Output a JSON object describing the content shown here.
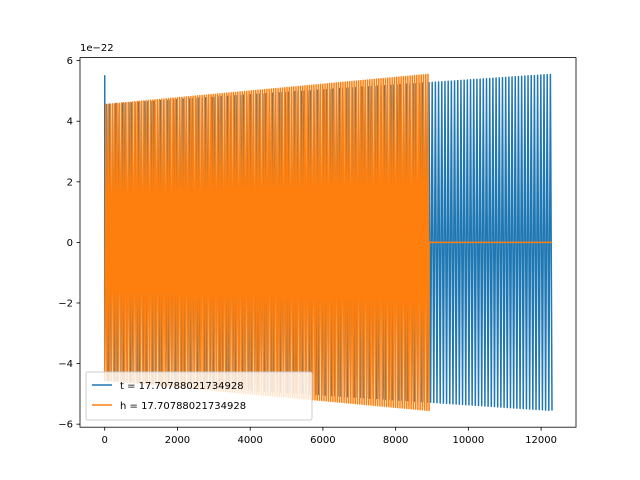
{
  "chart_data": {
    "type": "line",
    "title": "",
    "xlabel": "",
    "ylabel": "",
    "xlim": [
      -680,
      12960
    ],
    "ylim": [
      -6.1e-22,
      6.1e-22
    ],
    "x_ticks": [
      0,
      2000,
      4000,
      6000,
      8000,
      10000,
      12000
    ],
    "x_tick_labels": [
      "0",
      "2000",
      "4000",
      "6000",
      "8000",
      "10000",
      "12000"
    ],
    "y_ticks": [
      -6e-22,
      -4e-22,
      -2e-22,
      0,
      2e-22,
      4e-22,
      6e-22
    ],
    "y_tick_labels": [
      "−6",
      "−4",
      "−2",
      "0",
      "2",
      "4",
      "6"
    ],
    "y_offset_label": "1e−22",
    "grid": false,
    "legend_position": "lower-left",
    "series": [
      {
        "name": "t = 17.70788021734928",
        "color": "#1f77b4",
        "x_range": [
          0,
          12300
        ],
        "initial_spike": 5.5e-22,
        "start_amplitude": 4.55e-22,
        "end_amplitude": 5.55e-22,
        "cycles": 140
      },
      {
        "name": "h = 17.70788021734928",
        "color": "#ff7f0e",
        "x_range": [
          0,
          8920
        ],
        "start_amplitude": 4.55e-22,
        "end_amplitude": 5.55e-22,
        "cycles": 145,
        "flat_after": 8920,
        "flat_until": 12300,
        "flat_value": 0
      }
    ]
  }
}
